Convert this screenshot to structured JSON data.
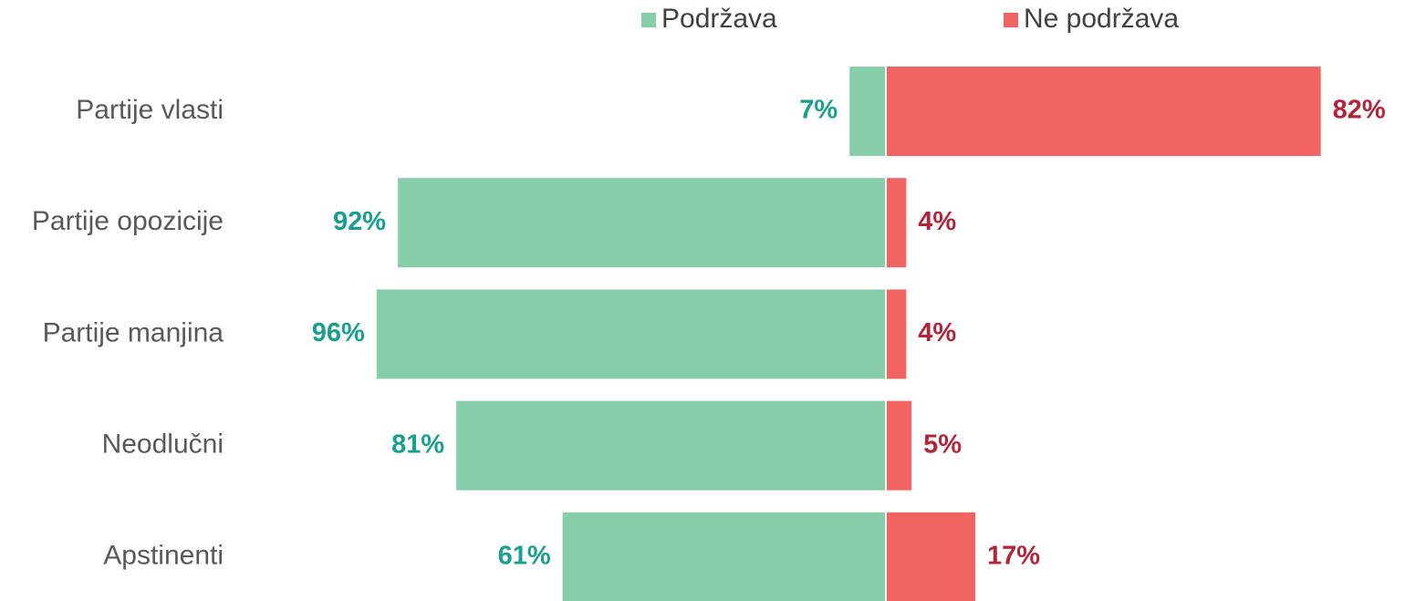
{
  "chart_data": {
    "type": "bar",
    "orientation": "horizontal",
    "diverging": true,
    "categories": [
      "Partije vlasti",
      "Partije opozicije",
      "Partije manjina",
      "Neodlučni",
      "Apstinenti"
    ],
    "series": [
      {
        "name": "Podržava",
        "color": "#86cdaa",
        "label_color": "#1a9e8e",
        "side": "left",
        "values": [
          7,
          92,
          96,
          81,
          61
        ],
        "value_labels": [
          "7%",
          "92%",
          "96%",
          "81%",
          "61%"
        ]
      },
      {
        "name": "Ne podržava",
        "color": "#f06461",
        "label_color": "#b0253a",
        "side": "right",
        "values": [
          82,
          4,
          4,
          5,
          17
        ],
        "value_labels": [
          "82%",
          "4%",
          "4%",
          "5%",
          "17%"
        ]
      }
    ],
    "legend": "top"
  }
}
